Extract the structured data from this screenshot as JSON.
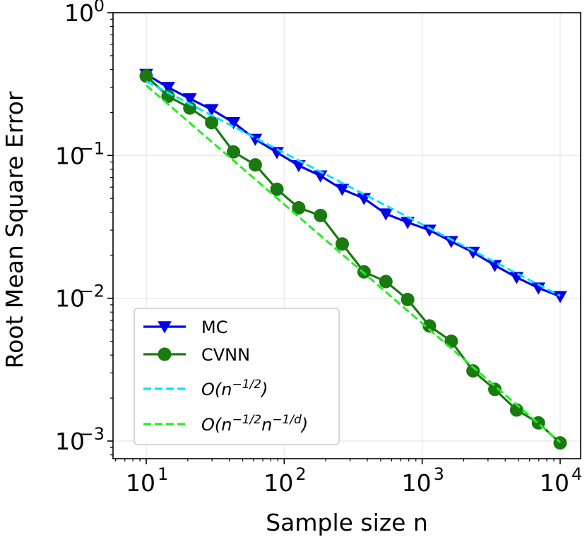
{
  "chart_data": {
    "type": "line",
    "xlabel": "Sample size n",
    "ylabel": "Root Mean Square Error",
    "x_scale": "log",
    "y_scale": "log",
    "xlim": [
      7.5,
      13500
    ],
    "ylim": [
      0.00085,
      1.0
    ],
    "grid": true,
    "legend_position": "lower-left",
    "x_ticks": [
      {
        "base": "10",
        "exp": "1",
        "value": 10
      },
      {
        "base": "10",
        "exp": "2",
        "value": 100
      },
      {
        "base": "10",
        "exp": "3",
        "value": 1000
      },
      {
        "base": "10",
        "exp": "4",
        "value": 10000
      }
    ],
    "y_ticks": [
      {
        "base": "10",
        "exp": "0",
        "value": 1.0
      },
      {
        "base": "10",
        "exp": "−1",
        "value": 0.1
      },
      {
        "base": "10",
        "exp": "−2",
        "value": 0.01
      },
      {
        "base": "10",
        "exp": "−3",
        "value": 0.001
      }
    ],
    "series": [
      {
        "name": "MC",
        "color": "#0000ee",
        "marker": "triangle-down",
        "x": [
          10,
          14.4,
          20.7,
          29.8,
          42.9,
          61.7,
          88.6,
          127.4,
          183.2,
          263.4,
          379.0,
          545.6,
          784.8,
          1128.8,
          1624.2,
          2336.7,
          3361.5,
          4836.6,
          6958.0,
          10000
        ],
        "y": [
          0.37,
          0.3,
          0.25,
          0.21,
          0.17,
          0.13,
          0.105,
          0.085,
          0.072,
          0.058,
          0.05,
          0.039,
          0.034,
          0.03,
          0.025,
          0.021,
          0.017,
          0.014,
          0.0118,
          0.0103
        ]
      },
      {
        "name": "CVNN",
        "color": "#1a7a10",
        "marker": "circle",
        "x": [
          10,
          14.4,
          20.7,
          29.8,
          42.9,
          61.7,
          88.6,
          127.4,
          183.2,
          263.4,
          379.0,
          545.6,
          784.8,
          1128.8,
          1624.2,
          2336.7,
          3361.5,
          4836.6,
          6958.0,
          10000
        ],
        "y": [
          0.36,
          0.26,
          0.215,
          0.17,
          0.106,
          0.086,
          0.058,
          0.043,
          0.038,
          0.024,
          0.0153,
          0.0131,
          0.0098,
          0.0064,
          0.005,
          0.0031,
          0.0023,
          0.00165,
          0.00134,
          0.00097
        ]
      },
      {
        "name": "O(n^{-1/2})",
        "color": "#00e5ff",
        "dashed": true,
        "x": [
          10,
          10000
        ],
        "y": [
          0.33,
          0.0104
        ]
      },
      {
        "name": "O(n^{-1/2} n^{-1/d})",
        "color": "#22ee22",
        "dashed": true,
        "x": [
          10,
          10000
        ],
        "y": [
          0.31,
          0.00098
        ]
      }
    ],
    "legend": [
      {
        "label": "MC",
        "kind": "line-marker",
        "series": 0
      },
      {
        "label": "CVNN",
        "kind": "line-marker",
        "series": 1
      },
      {
        "label_parts": [
          "O(n",
          "−1/2",
          ")"
        ],
        "kind": "dashed",
        "series": 2
      },
      {
        "label_parts": [
          "O(n",
          "−1/2",
          "n",
          "−1/d",
          ")"
        ],
        "kind": "dashed",
        "series": 3
      }
    ]
  }
}
